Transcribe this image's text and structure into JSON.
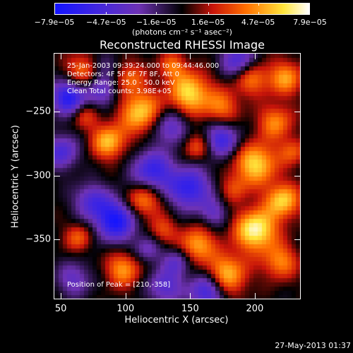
{
  "colorbar": {
    "tick_labels": [
      "−7.9e−05",
      "−4.7e−05",
      "−1.6e−05",
      "1.6e−05",
      "4.7e−05",
      "7.9e−05"
    ],
    "tick_values": [
      -7.9e-05,
      -4.7e-05,
      -1.6e-05,
      1.6e-05,
      4.7e-05,
      7.9e-05
    ],
    "range": [
      -7.9e-05,
      7.9e-05
    ],
    "units": "(photons cm⁻² s⁻¹ asec⁻²)",
    "colormap": "blue-purple-black-red-orange-yellow-white"
  },
  "chart_data": {
    "type": "heatmap",
    "title": "Reconstructed RHESSI Image",
    "xlabel": "Heliocentric X (arcsec)",
    "ylabel": "Heliocentric Y (arcsec)",
    "xlim": [
      45,
      235
    ],
    "ylim": [
      -396,
      -205
    ],
    "x_ticks": [
      50,
      100,
      150,
      200
    ],
    "y_ticks": [
      -250,
      -300,
      -350
    ],
    "peak_position": [
      210,
      -358
    ],
    "info_lines": [
      "25-Jan-2003 09:39:24.000 to 09:44:46.000",
      "Detectors: 4F 5F 6F 7F 8F, Att 0",
      "Energy Range: 25.0 - 50.0 keV",
      "Clean    Total counts: 3.98E+05"
    ],
    "peak_label": "Position of Peak = [210,-358]"
  },
  "timestamp": "27-May-2013 01:37"
}
